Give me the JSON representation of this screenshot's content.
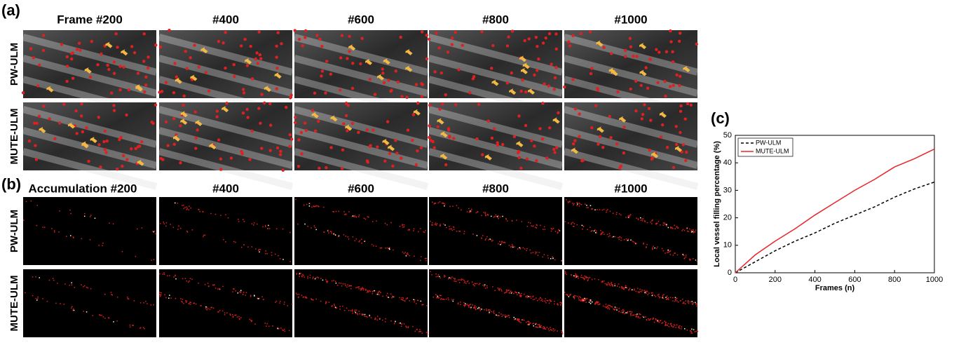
{
  "panel_a": {
    "label": "(a)",
    "column_titles": [
      "Frame #200",
      "#400",
      "#600",
      "#800",
      "#1000"
    ],
    "row_labels": [
      "PW-ULM",
      "MUTE-ULM"
    ]
  },
  "panel_b": {
    "label": "(b)",
    "column_titles": [
      "Accumulation #200",
      "#400",
      "#600",
      "#800",
      "#1000"
    ],
    "row_labels": [
      "PW-ULM",
      "MUTE-ULM"
    ]
  },
  "chart_data": {
    "type": "line",
    "label": "(c)",
    "x_label": "Frames (n)",
    "y_label": "Local vessel filling percentage (%)",
    "x": [
      0,
      100,
      200,
      300,
      400,
      500,
      600,
      700,
      800,
      900,
      1000
    ],
    "series": [
      {
        "name": "PW-ULM",
        "color": "#000000",
        "dash": true,
        "values": [
          0,
          4,
          8,
          11.5,
          14.5,
          18,
          21,
          24,
          27.5,
          30.5,
          33
        ]
      },
      {
        "name": "MUTE-ULM",
        "color": "#e8262a",
        "dash": false,
        "values": [
          0,
          6.5,
          11.5,
          16,
          21,
          25.5,
          30,
          34,
          38.5,
          41.5,
          45
        ]
      }
    ],
    "xlim": [
      0,
      1000
    ],
    "xticks": [
      0,
      200,
      400,
      600,
      800,
      1000
    ],
    "ylim": [
      0,
      50
    ],
    "yticks": [
      0,
      10,
      20,
      30,
      40,
      50
    ],
    "legend": "upper-left"
  }
}
